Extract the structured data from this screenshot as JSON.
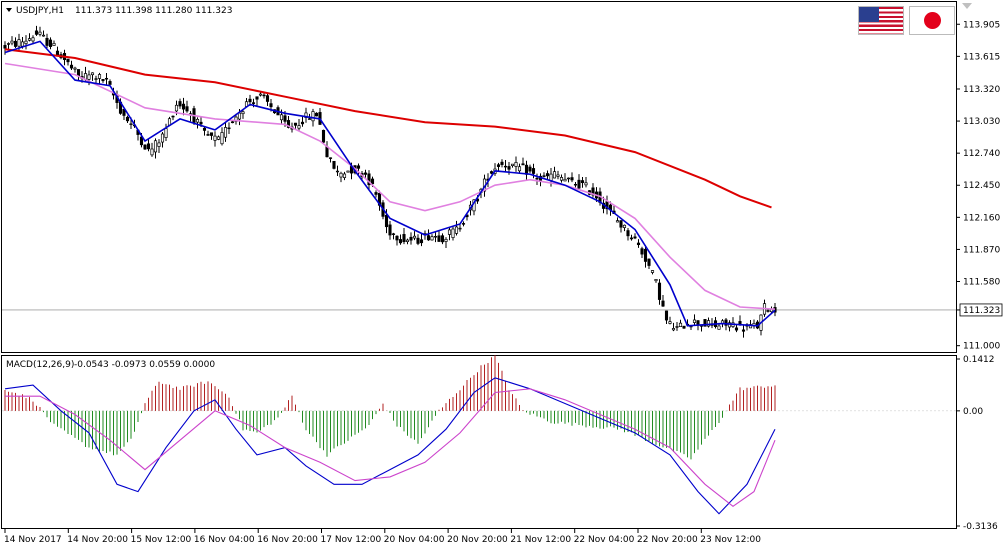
{
  "header": {
    "symbol": "USDJPY,H1",
    "ohlc": "111.373 111.398 111.280 111.323"
  },
  "macd_header": {
    "label": "MACD(12,26,9)",
    "values": "-0.0543 -0.0973 0.0559 0.0000"
  },
  "flags": {
    "left": "us-flag-icon",
    "right": "jp-flag-icon"
  },
  "colors": {
    "candles": "#000000",
    "fast_ma": "#0000cc",
    "slow_ma": "#e080e0",
    "long_ma": "#dd0000",
    "hist_pos": "#b22222",
    "hist_neg": "#228b22",
    "current_line": "#a0a0a0"
  },
  "chart_data": [
    {
      "type": "candlestick",
      "title": "USDJPY,H1",
      "ylim": [
        110.97,
        114.07
      ],
      "y_ticks": [
        "113.905",
        "113.615",
        "113.320",
        "113.030",
        "112.740",
        "112.450",
        "112.160",
        "111.870",
        "111.580",
        "111.323",
        "111.000"
      ],
      "current_price": 111.323,
      "x_ticks": [
        "14 Nov 2017",
        "14 Nov 20:00",
        "15 Nov 12:00",
        "16 Nov 04:00",
        "16 Nov 20:00",
        "17 Nov 12:00",
        "20 Nov 04:00",
        "20 Nov 20:00",
        "21 Nov 12:00",
        "22 Nov 04:00",
        "22 Nov 20:00",
        "23 Nov 12:00"
      ],
      "price_path": [
        [
          0,
          113.7
        ],
        [
          6,
          113.75
        ],
        [
          10,
          113.82
        ],
        [
          14,
          113.72
        ],
        [
          18,
          113.58
        ],
        [
          22,
          113.42
        ],
        [
          26,
          113.45
        ],
        [
          30,
          113.38
        ],
        [
          34,
          113.12
        ],
        [
          38,
          112.95
        ],
        [
          42,
          112.75
        ],
        [
          46,
          112.9
        ],
        [
          50,
          113.2
        ],
        [
          54,
          113.1
        ],
        [
          58,
          112.9
        ],
        [
          62,
          112.85
        ],
        [
          66,
          113.05
        ],
        [
          70,
          113.2
        ],
        [
          74,
          113.25
        ],
        [
          78,
          113.12
        ],
        [
          82,
          112.95
        ],
        [
          86,
          113.05
        ],
        [
          90,
          113.1
        ],
        [
          93,
          112.7
        ],
        [
          96,
          112.55
        ],
        [
          100,
          112.6
        ],
        [
          104,
          112.55
        ],
        [
          107,
          112.35
        ],
        [
          110,
          112.05
        ],
        [
          114,
          111.97
        ],
        [
          118,
          111.95
        ],
        [
          122,
          112.0
        ],
        [
          126,
          111.98
        ],
        [
          130,
          112.05
        ],
        [
          133,
          112.2
        ],
        [
          136,
          112.35
        ],
        [
          139,
          112.55
        ],
        [
          142,
          112.65
        ],
        [
          146,
          112.62
        ],
        [
          150,
          112.58
        ],
        [
          154,
          112.5
        ],
        [
          158,
          112.55
        ],
        [
          162,
          112.48
        ],
        [
          166,
          112.45
        ],
        [
          170,
          112.35
        ],
        [
          174,
          112.2
        ],
        [
          178,
          112.05
        ],
        [
          181,
          111.95
        ],
        [
          184,
          111.78
        ],
        [
          187,
          111.55
        ],
        [
          190,
          111.2
        ],
        [
          193,
          111.15
        ],
        [
          196,
          111.22
        ],
        [
          200,
          111.2
        ],
        [
          204,
          111.18
        ],
        [
          208,
          111.2
        ],
        [
          212,
          111.16
        ],
        [
          216,
          111.18
        ],
        [
          218,
          111.36
        ],
        [
          220,
          111.323
        ]
      ],
      "series": [
        {
          "name": "",
          "color": "#dd0000",
          "line_path": [
            [
              0,
              113.68
            ],
            [
              20,
              113.6
            ],
            [
              40,
              113.45
            ],
            [
              60,
              113.38
            ],
            [
              80,
              113.25
            ],
            [
              100,
              113.12
            ],
            [
              120,
              113.02
            ],
            [
              140,
              112.98
            ],
            [
              160,
              112.9
            ],
            [
              180,
              112.75
            ],
            [
              200,
              112.5
            ],
            [
              210,
              112.35
            ],
            [
              219,
              112.25
            ]
          ]
        },
        {
          "name": "",
          "color": "#e080e0",
          "line_path": [
            [
              0,
              113.55
            ],
            [
              20,
              113.45
            ],
            [
              40,
              113.15
            ],
            [
              60,
              113.05
            ],
            [
              80,
              113.0
            ],
            [
              90,
              112.85
            ],
            [
              100,
              112.6
            ],
            [
              110,
              112.3
            ],
            [
              120,
              112.22
            ],
            [
              130,
              112.3
            ],
            [
              140,
              112.45
            ],
            [
              150,
              112.5
            ],
            [
              160,
              112.45
            ],
            [
              170,
              112.35
            ],
            [
              180,
              112.15
            ],
            [
              190,
              111.8
            ],
            [
              200,
              111.5
            ],
            [
              210,
              111.35
            ],
            [
              220,
              111.33
            ]
          ]
        },
        {
          "name": "",
          "color": "#0000cc",
          "line_path": [
            [
              0,
              113.65
            ],
            [
              10,
              113.75
            ],
            [
              20,
              113.4
            ],
            [
              30,
              113.35
            ],
            [
              40,
              112.85
            ],
            [
              50,
              113.05
            ],
            [
              60,
              112.95
            ],
            [
              70,
              113.18
            ],
            [
              80,
              113.1
            ],
            [
              90,
              113.05
            ],
            [
              100,
              112.58
            ],
            [
              110,
              112.15
            ],
            [
              120,
              112.0
            ],
            [
              130,
              112.1
            ],
            [
              140,
              112.58
            ],
            [
              150,
              112.55
            ],
            [
              160,
              112.45
            ],
            [
              170,
              112.3
            ],
            [
              180,
              112.05
            ],
            [
              190,
              111.55
            ],
            [
              195,
              111.18
            ],
            [
              205,
              111.2
            ],
            [
              215,
              111.18
            ],
            [
              220,
              111.32
            ]
          ]
        }
      ]
    },
    {
      "type": "bar",
      "title": "MACD(12,26,9)",
      "ylim": [
        -0.3136,
        0.1412
      ],
      "y_ticks": [
        "0.1412",
        "0.00",
        "-0.3136"
      ],
      "histogram_path": [
        [
          0,
          0.06
        ],
        [
          8,
          0.03
        ],
        [
          14,
          -0.04
        ],
        [
          24,
          -0.1
        ],
        [
          32,
          -0.12
        ],
        [
          36,
          -0.08
        ],
        [
          40,
          0.02
        ],
        [
          44,
          0.08
        ],
        [
          50,
          0.06
        ],
        [
          58,
          0.08
        ],
        [
          64,
          0.04
        ],
        [
          68,
          -0.05
        ],
        [
          72,
          -0.06
        ],
        [
          78,
          -0.02
        ],
        [
          82,
          0.04
        ],
        [
          86,
          -0.05
        ],
        [
          92,
          -0.12
        ],
        [
          98,
          -0.08
        ],
        [
          104,
          -0.04
        ],
        [
          108,
          0.02
        ],
        [
          112,
          -0.04
        ],
        [
          118,
          -0.09
        ],
        [
          124,
          0.0
        ],
        [
          130,
          0.06
        ],
        [
          136,
          0.12
        ],
        [
          140,
          0.15
        ],
        [
          144,
          0.06
        ],
        [
          148,
          0.0
        ],
        [
          156,
          -0.03
        ],
        [
          166,
          -0.04
        ],
        [
          176,
          -0.05
        ],
        [
          186,
          -0.09
        ],
        [
          196,
          -0.13
        ],
        [
          204,
          -0.03
        ],
        [
          210,
          0.06
        ],
        [
          220,
          0.07
        ]
      ],
      "series": [
        {
          "name": "",
          "color": "#0000cc",
          "line_path": [
            [
              0,
              0.06
            ],
            [
              8,
              0.07
            ],
            [
              16,
              0.0
            ],
            [
              24,
              -0.06
            ],
            [
              32,
              -0.2
            ],
            [
              38,
              -0.22
            ],
            [
              46,
              -0.1
            ],
            [
              54,
              0.0
            ],
            [
              60,
              0.03
            ],
            [
              66,
              -0.05
            ],
            [
              72,
              -0.12
            ],
            [
              80,
              -0.1
            ],
            [
              86,
              -0.15
            ],
            [
              94,
              -0.2
            ],
            [
              102,
              -0.2
            ],
            [
              110,
              -0.16
            ],
            [
              118,
              -0.12
            ],
            [
              126,
              -0.05
            ],
            [
              134,
              0.05
            ],
            [
              140,
              0.09
            ],
            [
              150,
              0.06
            ],
            [
              160,
              0.02
            ],
            [
              170,
              -0.02
            ],
            [
              180,
              -0.06
            ],
            [
              190,
              -0.12
            ],
            [
              198,
              -0.22
            ],
            [
              204,
              -0.28
            ],
            [
              212,
              -0.2
            ],
            [
              220,
              -0.05
            ]
          ]
        },
        {
          "name": "",
          "color": "#cc44cc",
          "line_path": [
            [
              0,
              0.04
            ],
            [
              10,
              0.04
            ],
            [
              20,
              -0.01
            ],
            [
              30,
              -0.08
            ],
            [
              40,
              -0.16
            ],
            [
              50,
              -0.08
            ],
            [
              60,
              0.0
            ],
            [
              70,
              -0.04
            ],
            [
              80,
              -0.1
            ],
            [
              90,
              -0.14
            ],
            [
              100,
              -0.19
            ],
            [
              110,
              -0.18
            ],
            [
              120,
              -0.14
            ],
            [
              130,
              -0.06
            ],
            [
              140,
              0.05
            ],
            [
              150,
              0.06
            ],
            [
              160,
              0.03
            ],
            [
              170,
              -0.01
            ],
            [
              180,
              -0.05
            ],
            [
              190,
              -0.1
            ],
            [
              200,
              -0.2
            ],
            [
              208,
              -0.26
            ],
            [
              214,
              -0.22
            ],
            [
              220,
              -0.08
            ]
          ]
        }
      ]
    }
  ]
}
